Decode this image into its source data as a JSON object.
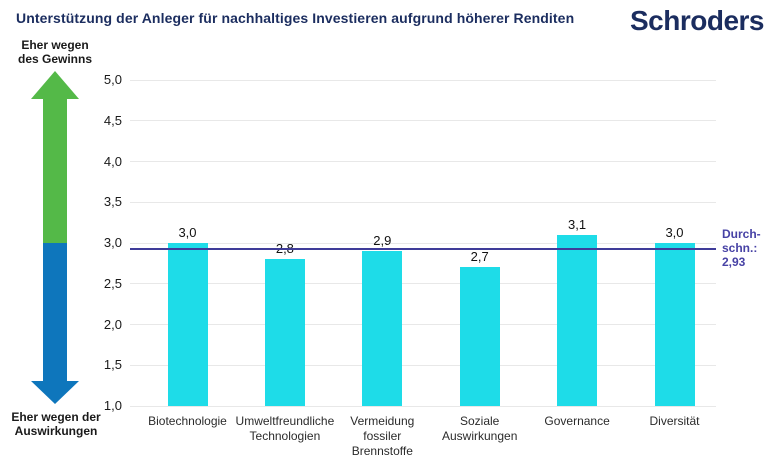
{
  "header": {
    "title": "Unterstützung der Anleger für nachhaltiges Investieren aufgrund höherer Renditen",
    "logo_text": "Schroders"
  },
  "axis_arrow": {
    "top_label": "Eher wegen\ndes Gewinns",
    "bottom_label": "Eher wegen der\nAuswirkungen"
  },
  "chart_data": {
    "type": "bar",
    "title": "Unterstützung der Anleger für nachhaltiges Investieren aufgrund höherer Renditen",
    "categories": [
      "Biotechnologie",
      "Umweltfreundliche Technologien",
      "Vermeidung fossiler Brennstoffe",
      "Soziale Auswirkungen",
      "Governance",
      "Diversität"
    ],
    "category_display": [
      "Biotechnologie",
      "Umweltfreundliche\nTechnologien",
      "Vermeidung\nfossiler\nBrennstoffe",
      "Soziale\nAuswirkungen",
      "Governance",
      "Diversität"
    ],
    "values": [
      3.0,
      2.8,
      2.9,
      2.7,
      3.1,
      3.0
    ],
    "value_labels": [
      "3,0",
      "2,8",
      "2,9",
      "2,7",
      "3,1",
      "3,0"
    ],
    "xlabel": "",
    "ylabel": "",
    "ylim": [
      1.0,
      5.0
    ],
    "y_ticks": [
      {
        "value": 5.0,
        "label": "5,0"
      },
      {
        "value": 4.5,
        "label": "4,5"
      },
      {
        "value": 4.0,
        "label": "4,0"
      },
      {
        "value": 3.5,
        "label": "3,5"
      },
      {
        "value": 3.0,
        "label": "3,0"
      },
      {
        "value": 2.5,
        "label": "2,5"
      },
      {
        "value": 2.0,
        "label": "2,0"
      },
      {
        "value": 1.5,
        "label": "1,5"
      },
      {
        "value": 1.0,
        "label": "1,0"
      }
    ],
    "grid": true,
    "legend_position": "none",
    "average": {
      "value": 2.93,
      "label": "Durch-\nschn.:\n2,93"
    }
  },
  "colors": {
    "navy": "#1b2d5f",
    "bar": "#1edce8",
    "grid": "#e8e8e8",
    "average_line": "#3f3c99",
    "average_label": "#4742a5",
    "arrow_up": "#54b948",
    "arrow_down": "#0e76bc"
  }
}
